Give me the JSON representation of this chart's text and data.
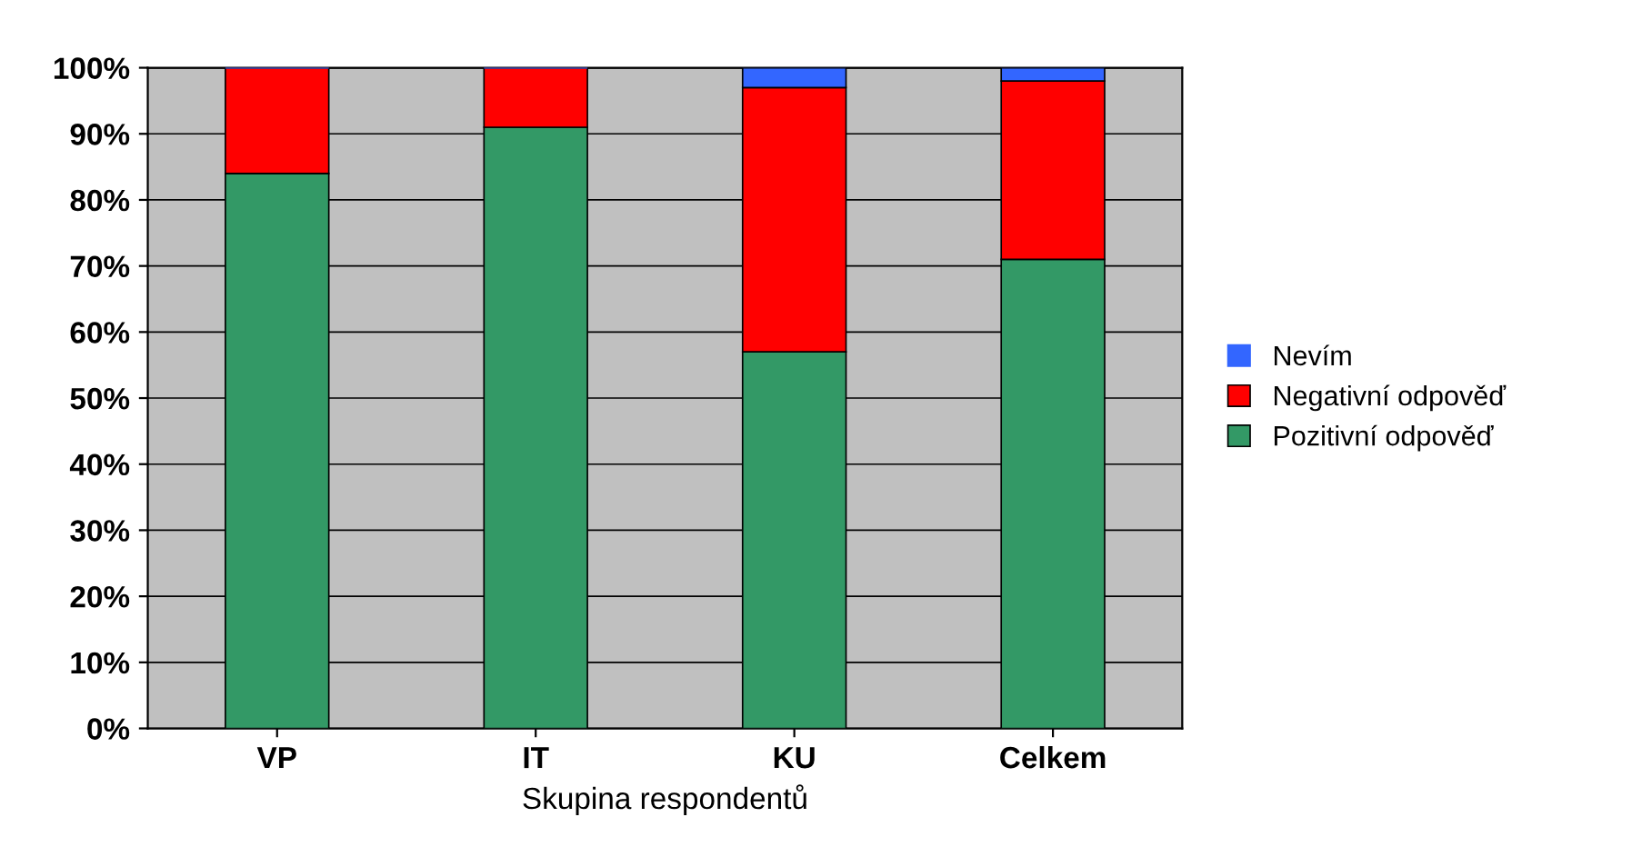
{
  "chart_data": {
    "type": "bar",
    "stacked": true,
    "xlabel": "Skupina respondentů",
    "categories": [
      "VP",
      "IT",
      "KU",
      "Celkem"
    ],
    "series": [
      {
        "name": "Pozitivní odpověď",
        "color": "#339966",
        "values": [
          84,
          91,
          57,
          71
        ]
      },
      {
        "name": "Negativní odpověď",
        "color": "#ff0000",
        "values": [
          16,
          9,
          40,
          27
        ]
      },
      {
        "name": "Nevím",
        "color": "#3366ff",
        "values": [
          0,
          0,
          3,
          2
        ]
      }
    ],
    "ylim": [
      0,
      100
    ],
    "yticks": [
      {
        "value": 0,
        "label": "0%"
      },
      {
        "value": 10,
        "label": "10%"
      },
      {
        "value": 20,
        "label": "20%"
      },
      {
        "value": 30,
        "label": "30%"
      },
      {
        "value": 40,
        "label": "40%"
      },
      {
        "value": 50,
        "label": "50%"
      },
      {
        "value": 60,
        "label": "60%"
      },
      {
        "value": 70,
        "label": "70%"
      },
      {
        "value": 80,
        "label": "80%"
      },
      {
        "value": 90,
        "label": "90%"
      },
      {
        "value": 100,
        "label": "100%"
      }
    ],
    "grid": "y",
    "legend": "right"
  }
}
